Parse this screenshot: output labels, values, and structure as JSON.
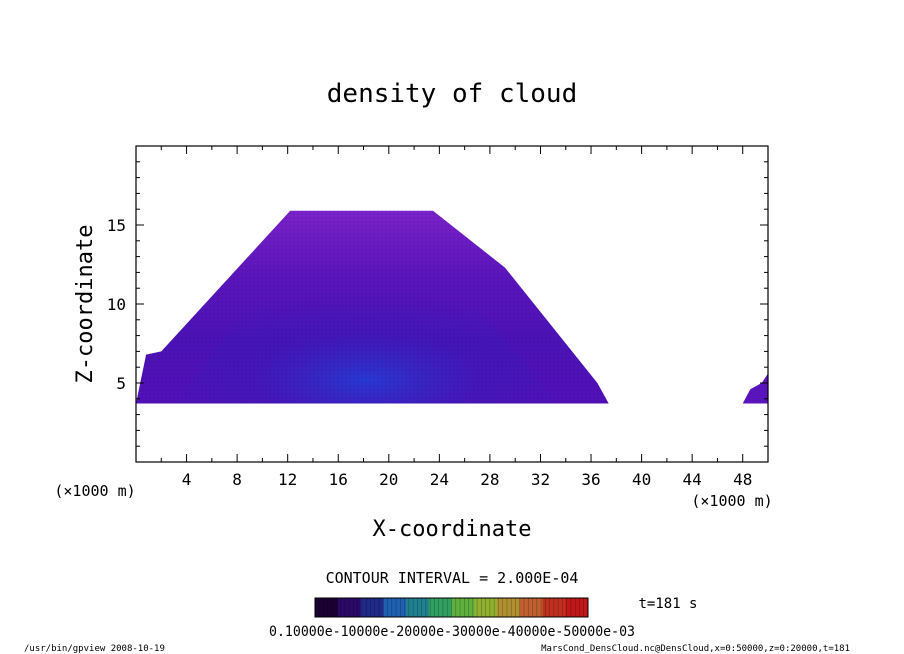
{
  "chart_data": {
    "type": "heatmap",
    "title": "density of cloud",
    "xlabel": "X-coordinate",
    "ylabel": "Z-coordinate",
    "x_unit_left": "(×1000 m)",
    "x_unit_right": "(×1000 m)",
    "xlim": [
      0,
      50
    ],
    "ylim": [
      0,
      20
    ],
    "x_ticks": [
      4,
      8,
      12,
      16,
      20,
      24,
      28,
      32,
      36,
      40,
      44,
      48
    ],
    "y_ticks": [
      5,
      10,
      15
    ],
    "cloud_region": {
      "outline_x": [
        0,
        0.8,
        2,
        12.2,
        23.5,
        29.2,
        36.5,
        37.4,
        36.5,
        0
      ],
      "outline_z": [
        3.7,
        6.8,
        7,
        15.9,
        15.9,
        12.3,
        5.0,
        3.7,
        3.7,
        3.7
      ],
      "side_patch_x": [
        48,
        48.6,
        49.5,
        50,
        50,
        48
      ],
      "side_patch_z": [
        3.7,
        4.6,
        5.0,
        5.6,
        3.7,
        3.7
      ],
      "base_z": 3.7,
      "top_z": 16.0
    },
    "contour_interval": "CONTOUR INTERVAL = 2.000E-04",
    "time_label": "t=181 s",
    "colorbar": {
      "labels_text": "0.10000e-10000e-20000e-30000e-40000e-50000e-03",
      "colors": [
        "#1a0033",
        "#2a0a66",
        "#202a8a",
        "#2060b0",
        "#208090",
        "#30a060",
        "#60b040",
        "#90b030",
        "#b09030",
        "#c06030",
        "#c03020",
        "#c01818"
      ]
    },
    "colors": {
      "cloud_base": "#5510b8",
      "cloud_edge": "#7a20c8",
      "cloud_core": "#3a1ab8",
      "cloud_bright": "#1e3ad0"
    }
  },
  "footer": {
    "left": "/usr/bin/gpview   2008-10-19",
    "right": "MarsCond_DensCloud.nc@DensCloud,x=0:50000,z=0:20000,t=181"
  }
}
